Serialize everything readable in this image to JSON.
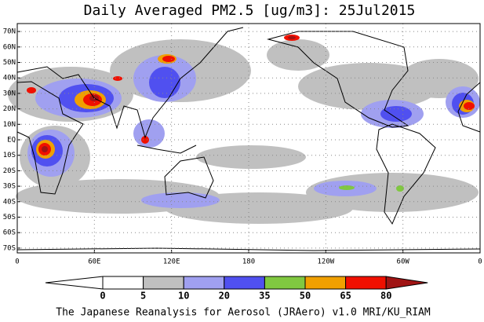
{
  "title": "Daily Averaged PM2.5 [ug/m3]: 25Jul2015",
  "lat_labels": [
    "70N",
    "60N",
    "50N",
    "40N",
    "30N",
    "20N",
    "10N",
    "EQ",
    "10S",
    "20S",
    "30S",
    "40S",
    "50S",
    "60S",
    "70S"
  ],
  "lon_labels": [
    "0",
    "60E",
    "120E",
    "180",
    "120W",
    "60W",
    "0"
  ],
  "colorbar": {
    "levels": [
      0,
      5,
      10,
      20,
      35,
      50,
      65,
      80
    ],
    "colors": [
      "#ffffff",
      "#ffffff",
      "#c0c0c0",
      "#a0a0f0",
      "#5050f0",
      "#80c840",
      "#f0a000",
      "#f01000",
      "#a01414"
    ]
  },
  "footer": "The Japanese Reanalysis for Aerosol (JRAero) v1.0 MRI/KU_RIAM"
}
